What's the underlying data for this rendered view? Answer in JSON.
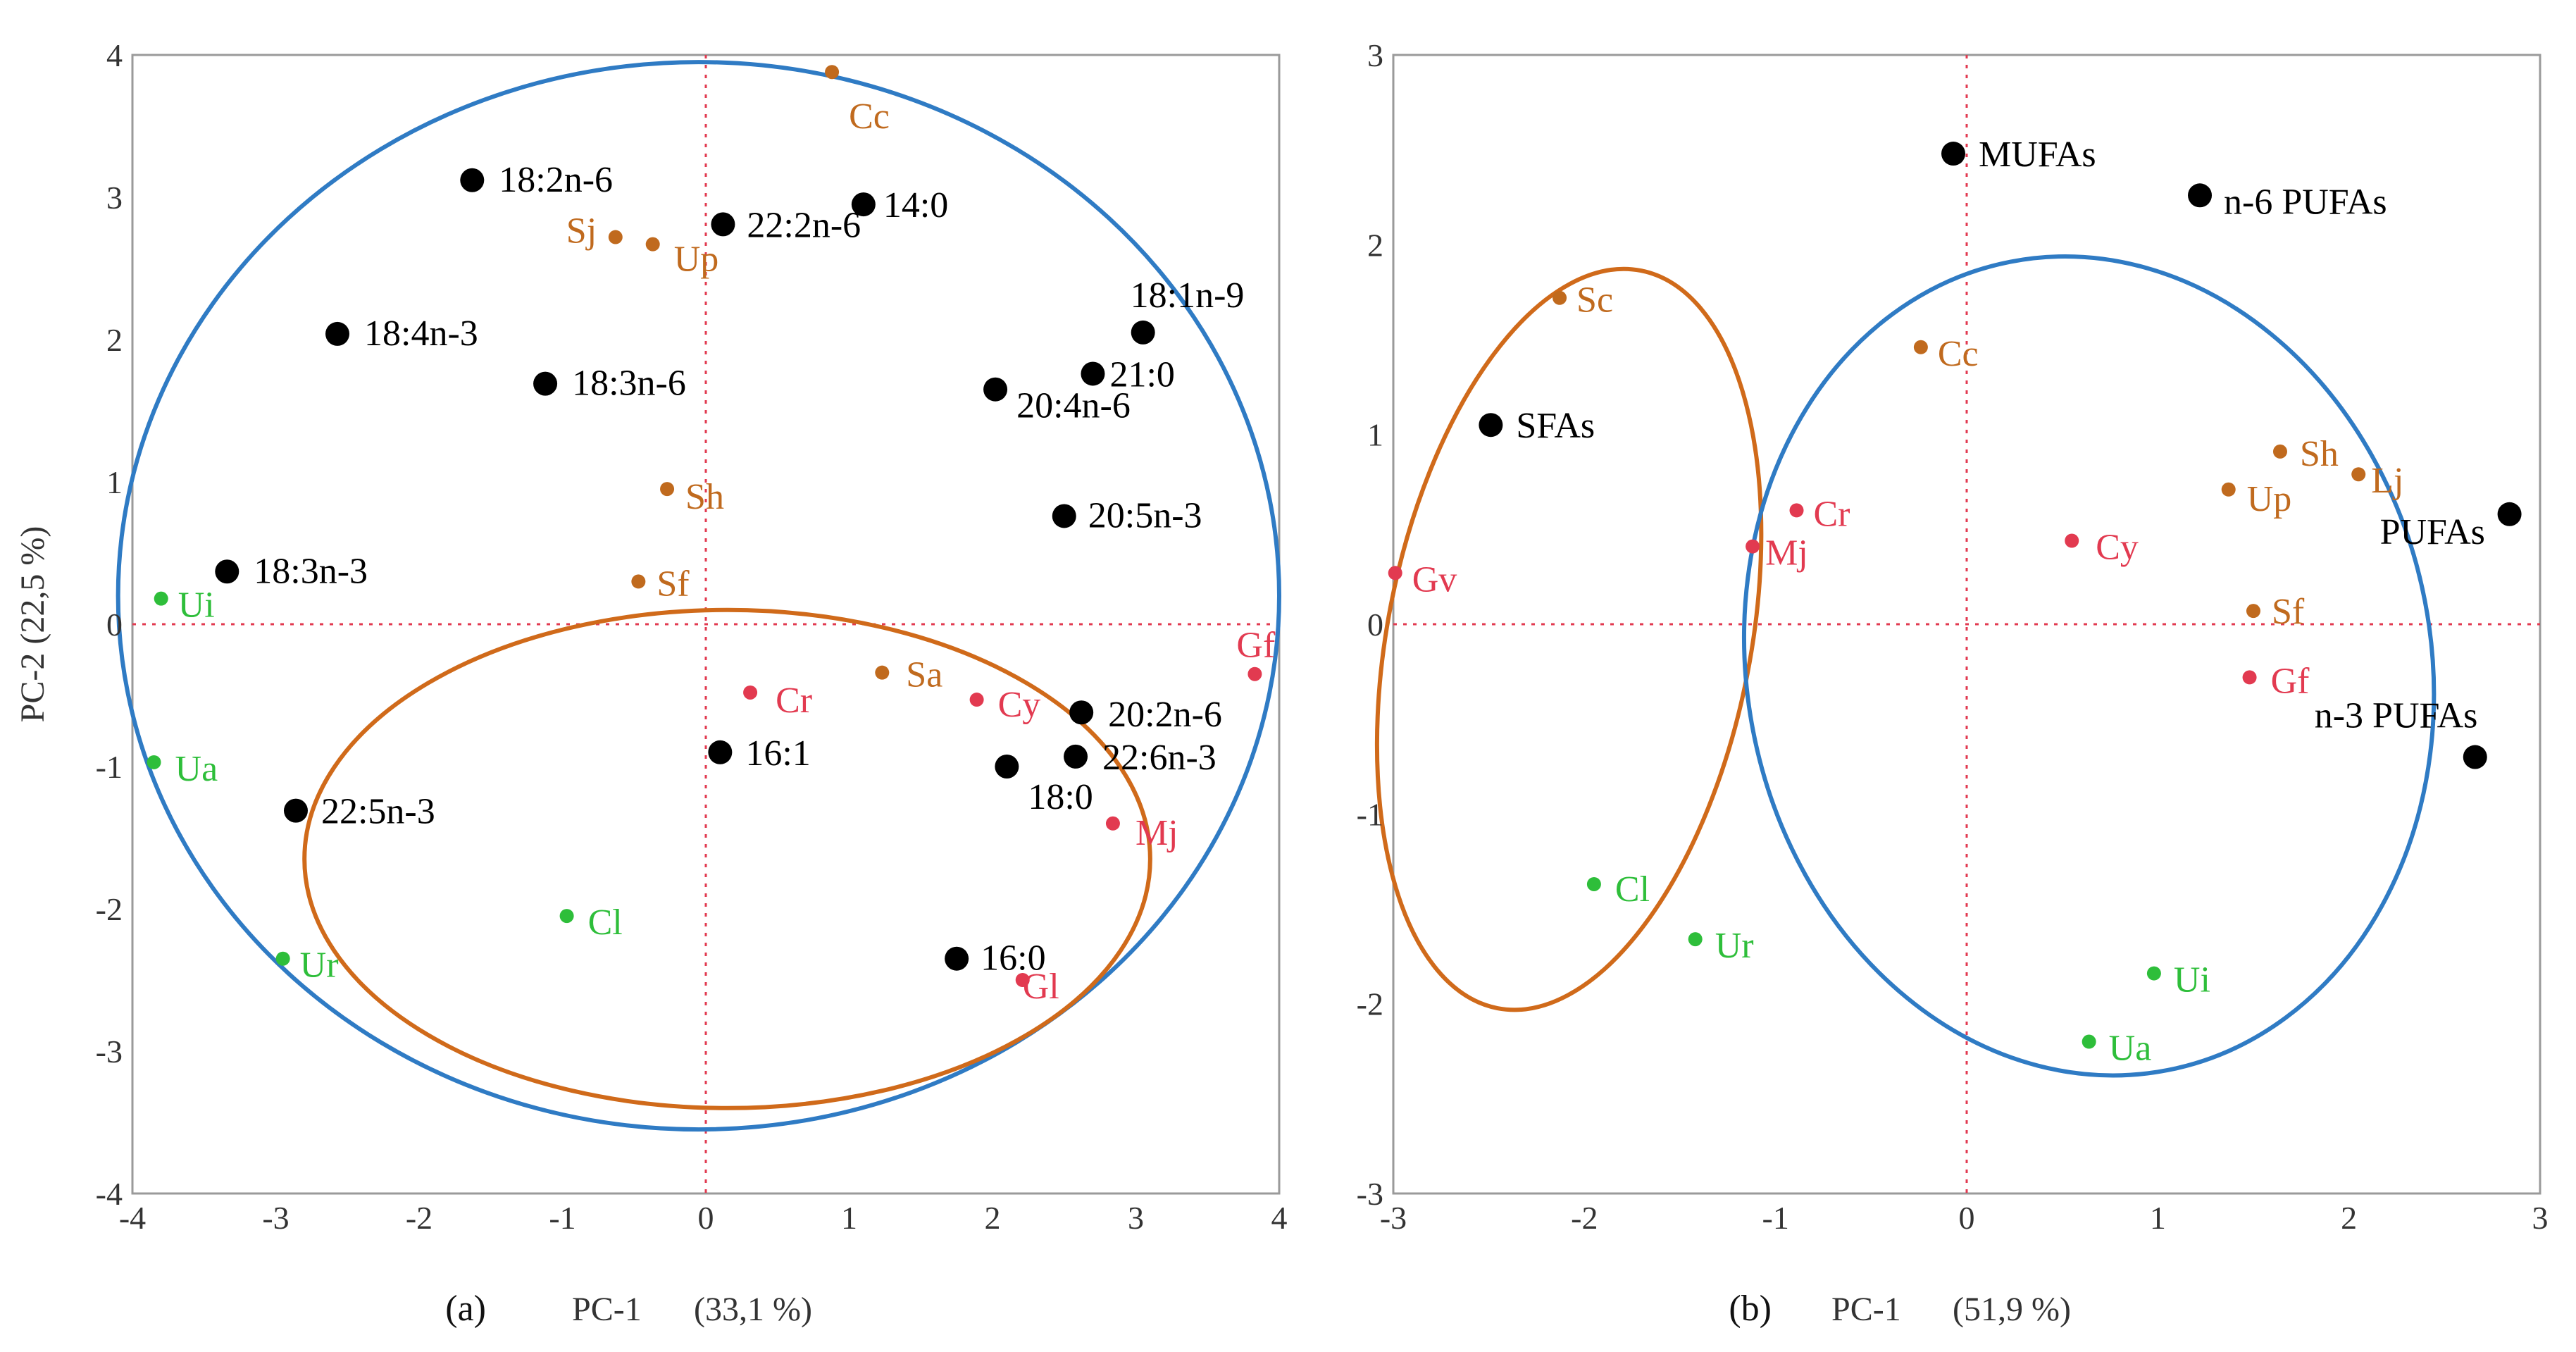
{
  "chart_data": [
    {
      "type": "scatter",
      "panel_label": "(a)",
      "xlabel": "PC-1",
      "xlabel_pct": "(33,1 %)",
      "ylabel": "PC-2  (22,5 %)",
      "xlim": [
        -4,
        4
      ],
      "ylim": [
        -4,
        4
      ],
      "xticks": [
        "-4",
        "-3",
        "-2",
        "-1",
        "0",
        "1",
        "2",
        "3",
        "4"
      ],
      "yticks": [
        "4",
        "3",
        "2",
        "1",
        "0",
        "-1",
        "-2",
        "-3",
        "-4"
      ],
      "zero_lines": true,
      "ellipses": [
        {
          "group": "blue",
          "color": "#2F7BC4",
          "cx": -0.05,
          "cy": 0.2,
          "rx": 4.05,
          "ry": 3.75,
          "angle": 0
        },
        {
          "group": "orange",
          "color": "#D06A1A",
          "cx": 0.15,
          "cy": -1.65,
          "rx": 2.95,
          "ry": 1.75,
          "angle": 0
        }
      ],
      "points": [
        {
          "label": "18:2n-6",
          "x": -1.63,
          "y": 3.12,
          "color": "#000000",
          "size": "large"
        },
        {
          "label": "22:2n-6",
          "x": 0.12,
          "y": 2.81,
          "color": "#000000",
          "size": "large"
        },
        {
          "label": "14:0",
          "x": 1.1,
          "y": 2.95,
          "color": "#000000",
          "size": "large"
        },
        {
          "label": "18:4n-3",
          "x": -2.57,
          "y": 2.04,
          "color": "#000000",
          "size": "large"
        },
        {
          "label": "18:3n-6",
          "x": -1.12,
          "y": 1.69,
          "color": "#000000",
          "size": "large"
        },
        {
          "label": "18:1n-9",
          "x": 3.05,
          "y": 2.05,
          "color": "#000000",
          "size": "large"
        },
        {
          "label": "21:0",
          "x": 2.7,
          "y": 1.76,
          "color": "#000000",
          "size": "large"
        },
        {
          "label": "20:4n-6",
          "x": 2.02,
          "y": 1.65,
          "color": "#000000",
          "size": "large"
        },
        {
          "label": "20:5n-3",
          "x": 2.5,
          "y": 0.76,
          "color": "#000000",
          "size": "large"
        },
        {
          "label": "18:3n-3",
          "x": -3.34,
          "y": 0.37,
          "color": "#000000",
          "size": "large"
        },
        {
          "label": "20:2n-6",
          "x": 2.62,
          "y": -0.62,
          "color": "#000000",
          "size": "large"
        },
        {
          "label": "22:6n-3",
          "x": 2.58,
          "y": -0.93,
          "color": "#000000",
          "size": "large"
        },
        {
          "label": "16:1",
          "x": 0.1,
          "y": -0.9,
          "color": "#000000",
          "size": "large"
        },
        {
          "label": "18:0",
          "x": 2.1,
          "y": -1.0,
          "color": "#000000",
          "size": "large"
        },
        {
          "label": "22:5n-3",
          "x": -2.86,
          "y": -1.31,
          "color": "#000000",
          "size": "large"
        },
        {
          "label": "16:0",
          "x": 1.75,
          "y": -2.35,
          "color": "#000000",
          "size": "large"
        },
        {
          "label": "Cc",
          "x": 0.88,
          "y": 3.88,
          "color": "#C06A1E",
          "size": "small"
        },
        {
          "label": "Sj",
          "x": -0.63,
          "y": 2.72,
          "color": "#C06A1E",
          "size": "small"
        },
        {
          "label": "Up",
          "x": -0.37,
          "y": 2.67,
          "color": "#C06A1E",
          "size": "small"
        },
        {
          "label": "Sh",
          "x": -0.27,
          "y": 0.95,
          "color": "#C06A1E",
          "size": "small"
        },
        {
          "label": "Sf",
          "x": -0.47,
          "y": 0.3,
          "color": "#C06A1E",
          "size": "small"
        },
        {
          "label": "Sa",
          "x": 1.23,
          "y": -0.34,
          "color": "#C06A1E",
          "size": "small"
        },
        {
          "label": "Cr",
          "x": 0.31,
          "y": -0.48,
          "color": "#E23A50",
          "size": "small"
        },
        {
          "label": "Cy",
          "x": 1.89,
          "y": -0.53,
          "color": "#E23A50",
          "size": "small"
        },
        {
          "label": "Gf",
          "x": 3.83,
          "y": -0.35,
          "color": "#E23A50",
          "size": "small"
        },
        {
          "label": "Mj",
          "x": 2.84,
          "y": -1.4,
          "color": "#E23A50",
          "size": "small"
        },
        {
          "label": "Gl",
          "x": 2.21,
          "y": -2.5,
          "color": "#E23A50",
          "size": "small"
        },
        {
          "label": "Ui",
          "x": -3.8,
          "y": 0.18,
          "color": "#2EBE3A",
          "size": "small"
        },
        {
          "label": "Ua",
          "x": -3.85,
          "y": -0.97,
          "color": "#2EBE3A",
          "size": "small"
        },
        {
          "label": "Cl",
          "x": -0.97,
          "y": -2.05,
          "color": "#2EBE3A",
          "size": "small"
        },
        {
          "label": "Ur",
          "x": -2.95,
          "y": -2.35,
          "color": "#2EBE3A",
          "size": "small"
        }
      ]
    },
    {
      "type": "scatter",
      "panel_label": "(b)",
      "xlabel": "PC-1",
      "xlabel_pct": "(51,9 %)",
      "ylabel": "",
      "xlim": [
        -3,
        3
      ],
      "ylim": [
        -3,
        3
      ],
      "xticks": [
        "-3",
        "-2",
        "-1",
        "0",
        "1",
        "2",
        "3"
      ],
      "yticks": [
        "3",
        "2",
        "1",
        "0",
        "-1",
        "-2",
        "-3"
      ],
      "zero_lines": true,
      "ellipses": [
        {
          "group": "orange",
          "color": "#D06A1A",
          "cx": -2.08,
          "cy": -0.08,
          "rx": 0.95,
          "ry": 1.98,
          "angle": 11
        },
        {
          "group": "blue",
          "color": "#2F7BC4",
          "cx": 0.64,
          "cy": -0.22,
          "rx": 1.79,
          "ry": 2.17,
          "angle": -11
        }
      ],
      "points": [
        {
          "label": "MUFAs",
          "x": -0.07,
          "y": 2.48,
          "color": "#000000",
          "size": "large"
        },
        {
          "label": "n-6 PUFAs",
          "x": 1.22,
          "y": 2.26,
          "color": "#000000",
          "size": "large"
        },
        {
          "label": "SFAs",
          "x": -2.49,
          "y": 1.05,
          "color": "#000000",
          "size": "large"
        },
        {
          "label": "PUFAs",
          "x": 2.84,
          "y": 0.58,
          "color": "#000000",
          "size": "large"
        },
        {
          "label": "n-3 PUFAs",
          "x": 2.66,
          "y": -0.7,
          "color": "#000000",
          "size": "large"
        },
        {
          "label": "Sc",
          "x": -2.13,
          "y": 1.72,
          "color": "#C06A1E",
          "size": "small"
        },
        {
          "label": "Cc",
          "x": -0.24,
          "y": 1.46,
          "color": "#C06A1E",
          "size": "small"
        },
        {
          "label": "Sh",
          "x": 1.64,
          "y": 0.91,
          "color": "#C06A1E",
          "size": "small"
        },
        {
          "label": "Lj",
          "x": 2.05,
          "y": 0.79,
          "color": "#C06A1E",
          "size": "small"
        },
        {
          "label": "Up",
          "x": 1.37,
          "y": 0.71,
          "color": "#C06A1E",
          "size": "small"
        },
        {
          "label": "Sf",
          "x": 1.5,
          "y": 0.07,
          "color": "#C06A1E",
          "size": "small"
        },
        {
          "label": "Cr",
          "x": -0.89,
          "y": 0.6,
          "color": "#E23A50",
          "size": "small"
        },
        {
          "label": "Mj",
          "x": -1.12,
          "y": 0.41,
          "color": "#E23A50",
          "size": "small"
        },
        {
          "label": "Cy",
          "x": 0.55,
          "y": 0.44,
          "color": "#E23A50",
          "size": "small"
        },
        {
          "label": "Gv",
          "x": -2.99,
          "y": 0.27,
          "color": "#E23A50",
          "size": "small"
        },
        {
          "label": "Gf",
          "x": 1.48,
          "y": -0.28,
          "color": "#E23A50",
          "size": "small"
        },
        {
          "label": "Cl",
          "x": -1.95,
          "y": -1.37,
          "color": "#2EBE3A",
          "size": "small"
        },
        {
          "label": "Ur",
          "x": -1.42,
          "y": -1.66,
          "color": "#2EBE3A",
          "size": "small"
        },
        {
          "label": "Ui",
          "x": 0.98,
          "y": -1.84,
          "color": "#2EBE3A",
          "size": "small"
        },
        {
          "label": "Ua",
          "x": 0.64,
          "y": -2.2,
          "color": "#2EBE3A",
          "size": "small"
        }
      ]
    }
  ]
}
